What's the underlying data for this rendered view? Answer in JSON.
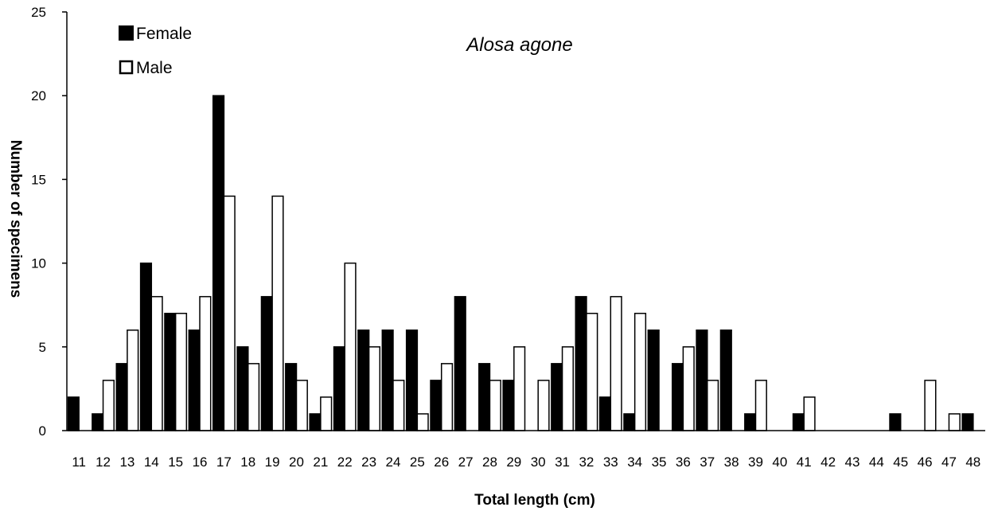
{
  "chart_data": {
    "type": "bar",
    "title": "Alosa agone",
    "xlabel": "Total length (cm)",
    "ylabel": "Number of specimens",
    "ylim": [
      0,
      25
    ],
    "yticks": [
      0,
      5,
      10,
      15,
      20,
      25
    ],
    "grid": false,
    "legend_position": "top-left",
    "categories": [
      "11",
      "12",
      "13",
      "14",
      "15",
      "16",
      "17",
      "18",
      "19",
      "20",
      "21",
      "22",
      "23",
      "24",
      "25",
      "26",
      "27",
      "28",
      "29",
      "30",
      "31",
      "32",
      "33",
      "34",
      "35",
      "36",
      "37",
      "38",
      "39",
      "40",
      "41",
      "42",
      "43",
      "44",
      "45",
      "46",
      "47",
      "48"
    ],
    "series": [
      {
        "name": "Female",
        "fill": "#000000",
        "stroke": "#000000",
        "values": [
          2,
          1,
          4,
          10,
          7,
          6,
          20,
          5,
          8,
          4,
          1,
          5,
          6,
          6,
          6,
          3,
          8,
          4,
          3,
          0,
          4,
          8,
          2,
          1,
          6,
          4,
          6,
          6,
          1,
          0,
          1,
          0,
          0,
          0,
          1,
          0,
          0,
          1
        ]
      },
      {
        "name": "Male",
        "fill": "#ffffff",
        "stroke": "#000000",
        "values": [
          0,
          3,
          6,
          8,
          7,
          8,
          14,
          4,
          14,
          3,
          2,
          10,
          5,
          3,
          1,
          4,
          0,
          3,
          5,
          3,
          5,
          7,
          8,
          7,
          0,
          5,
          3,
          0,
          3,
          0,
          2,
          0,
          0,
          0,
          0,
          3,
          1,
          0
        ]
      }
    ]
  }
}
